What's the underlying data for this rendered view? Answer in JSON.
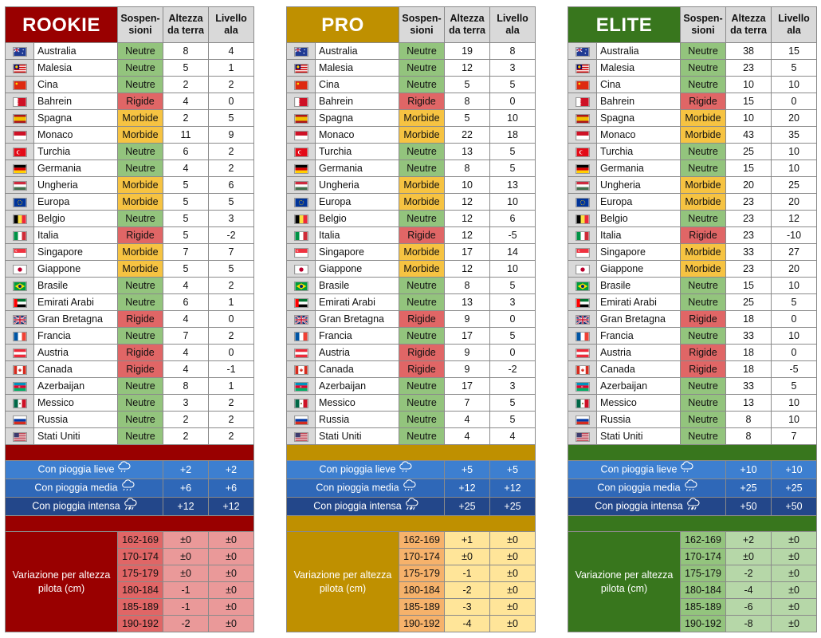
{
  "headers": {
    "suspension": "Sospen-\nsioni",
    "ground_height": "Altezza\nda terra",
    "wing_level": "Livello\nala"
  },
  "tracks": [
    {
      "name": "Australia",
      "flag": "australia"
    },
    {
      "name": "Malesia",
      "flag": "malaysia"
    },
    {
      "name": "Cina",
      "flag": "china"
    },
    {
      "name": "Bahrein",
      "flag": "bahrain"
    },
    {
      "name": "Spagna",
      "flag": "spain"
    },
    {
      "name": "Monaco",
      "flag": "monaco"
    },
    {
      "name": "Turchia",
      "flag": "turkey"
    },
    {
      "name": "Germania",
      "flag": "germany"
    },
    {
      "name": "Ungheria",
      "flag": "hungary"
    },
    {
      "name": "Europa",
      "flag": "eu"
    },
    {
      "name": "Belgio",
      "flag": "belgium"
    },
    {
      "name": "Italia",
      "flag": "italy"
    },
    {
      "name": "Singapore",
      "flag": "singapore"
    },
    {
      "name": "Giappone",
      "flag": "japan"
    },
    {
      "name": "Brasile",
      "flag": "brazil"
    },
    {
      "name": "Emirati Arabi",
      "flag": "uae"
    },
    {
      "name": "Gran Bretagna",
      "flag": "uk"
    },
    {
      "name": "Francia",
      "flag": "france"
    },
    {
      "name": "Austria",
      "flag": "austria"
    },
    {
      "name": "Canada",
      "flag": "canada"
    },
    {
      "name": "Azerbaijan",
      "flag": "azerbaijan"
    },
    {
      "name": "Messico",
      "flag": "mexico"
    },
    {
      "name": "Russia",
      "flag": "russia"
    },
    {
      "name": "Stati Uniti",
      "flag": "usa"
    }
  ],
  "suspensions": [
    "Neutre",
    "Neutre",
    "Neutre",
    "Rigide",
    "Morbide",
    "Morbide",
    "Neutre",
    "Neutre",
    "Morbide",
    "Morbide",
    "Neutre",
    "Rigide",
    "Morbide",
    "Morbide",
    "Neutre",
    "Neutre",
    "Rigide",
    "Neutre",
    "Rigide",
    "Rigide",
    "Neutre",
    "Neutre",
    "Neutre",
    "Neutre"
  ],
  "rain_labels": [
    "Con pioggia lieve",
    "Con pioggia media",
    "Con pioggia intensa"
  ],
  "rain_icons": [
    "cloud-rain-light-icon",
    "cloud-rain-medium-icon",
    "cloud-rain-heavy-icon"
  ],
  "variation_label": "Variazione per altezza pilota (cm)",
  "height_ranges": [
    "162-169",
    "170-174",
    "175-179",
    "180-184",
    "185-189",
    "190-192"
  ],
  "colors": {
    "neutre": "#93c47d",
    "rigide": "#e06666",
    "morbide": "#f6c342",
    "rookie": "#990000",
    "pro": "#bf9000",
    "elite": "#38761d",
    "rain_light": "#3d7fd0",
    "rain_medium": "#2f68b8",
    "rain_heavy": "#23478a"
  },
  "tiers": [
    {
      "key": "rookie",
      "title": "ROOKIE",
      "ground": [
        "8",
        "5",
        "2",
        "4",
        "2",
        "11",
        "6",
        "4",
        "5",
        "5",
        "5",
        "5",
        "7",
        "5",
        "4",
        "6",
        "4",
        "7",
        "4",
        "4",
        "8",
        "3",
        "2",
        "2"
      ],
      "wing": [
        "4",
        "1",
        "2",
        "0",
        "5",
        "9",
        "2",
        "2",
        "6",
        "5",
        "3",
        "-2",
        "7",
        "5",
        "2",
        "1",
        "0",
        "2",
        "0",
        "-1",
        "1",
        "2",
        "2",
        "2"
      ],
      "rain": [
        [
          "+2",
          "+2"
        ],
        [
          "+6",
          "+6"
        ],
        [
          "+12",
          "+12"
        ]
      ],
      "variation": [
        [
          "±0",
          "±0"
        ],
        [
          "±0",
          "±0"
        ],
        [
          "±0",
          "±0"
        ],
        [
          "-1",
          "±0"
        ],
        [
          "-1",
          "±0"
        ],
        [
          "-2",
          "±0"
        ]
      ]
    },
    {
      "key": "pro",
      "title": "PRO",
      "ground": [
        "19",
        "12",
        "5",
        "8",
        "5",
        "22",
        "13",
        "8",
        "10",
        "12",
        "12",
        "12",
        "17",
        "12",
        "8",
        "13",
        "9",
        "17",
        "9",
        "9",
        "17",
        "7",
        "4",
        "4"
      ],
      "wing": [
        "8",
        "3",
        "5",
        "0",
        "10",
        "18",
        "5",
        "5",
        "13",
        "10",
        "6",
        "-5",
        "14",
        "10",
        "5",
        "3",
        "0",
        "5",
        "0",
        "-2",
        "3",
        "5",
        "5",
        "4"
      ],
      "rain": [
        [
          "+5",
          "+5"
        ],
        [
          "+12",
          "+12"
        ],
        [
          "+25",
          "+25"
        ]
      ],
      "variation": [
        [
          "+1",
          "±0"
        ],
        [
          "±0",
          "±0"
        ],
        [
          "-1",
          "±0"
        ],
        [
          "-2",
          "±0"
        ],
        [
          "-3",
          "±0"
        ],
        [
          "-4",
          "±0"
        ]
      ]
    },
    {
      "key": "elite",
      "title": "ELITE",
      "ground": [
        "38",
        "23",
        "10",
        "15",
        "10",
        "43",
        "25",
        "15",
        "20",
        "23",
        "23",
        "23",
        "33",
        "23",
        "15",
        "25",
        "18",
        "33",
        "18",
        "18",
        "33",
        "13",
        "8",
        "8"
      ],
      "wing": [
        "15",
        "5",
        "10",
        "0",
        "20",
        "35",
        "10",
        "10",
        "25",
        "20",
        "12",
        "-10",
        "27",
        "20",
        "10",
        "5",
        "0",
        "10",
        "0",
        "-5",
        "5",
        "10",
        "10",
        "7"
      ],
      "rain": [
        [
          "+10",
          "+10"
        ],
        [
          "+25",
          "+25"
        ],
        [
          "+50",
          "+50"
        ]
      ],
      "variation": [
        [
          "+2",
          "±0"
        ],
        [
          "±0",
          "±0"
        ],
        [
          "-2",
          "±0"
        ],
        [
          "-4",
          "±0"
        ],
        [
          "-6",
          "±0"
        ],
        [
          "-8",
          "±0"
        ]
      ]
    }
  ]
}
